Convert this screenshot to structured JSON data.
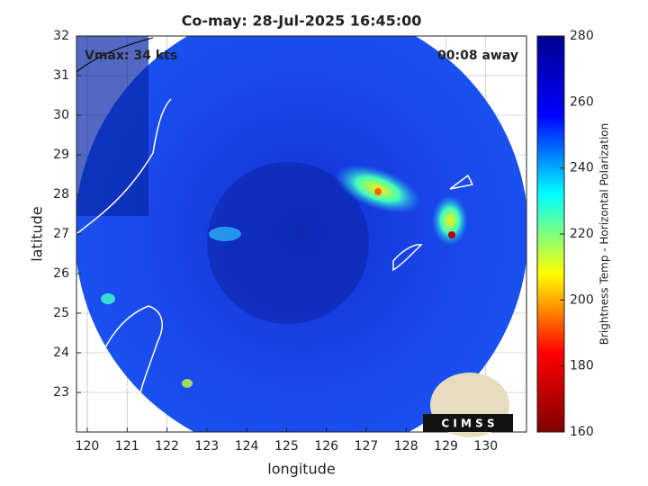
{
  "chart_data": {
    "type": "map",
    "title": "Co-may: 28-Jul-2025 16:45:00",
    "annotations": [
      "Vmax: 34 kts",
      "00:08 away"
    ],
    "x_label": "longitude",
    "y_label": "latitude",
    "xlim": [
      119.73,
      131.02
    ],
    "xticks": [
      120,
      121,
      122,
      123,
      124,
      125,
      126,
      127,
      128,
      129,
      130
    ],
    "ylim": [
      22,
      32
    ],
    "yticks": [
      23,
      24,
      25,
      26,
      27,
      28,
      29,
      30,
      31,
      32
    ],
    "grid": true,
    "colorbar": {
      "label": "Brightness Temp - Horizontal Polarization",
      "lim": [
        160,
        280
      ],
      "ticks": [
        160,
        180,
        200,
        220,
        240,
        260,
        280
      ],
      "colormap": [
        "#7f0000",
        "#ff0000",
        "#ffff00",
        "#00ffff",
        "#0000ff",
        "#00008f"
      ]
    },
    "logo": "C I M S S"
  }
}
